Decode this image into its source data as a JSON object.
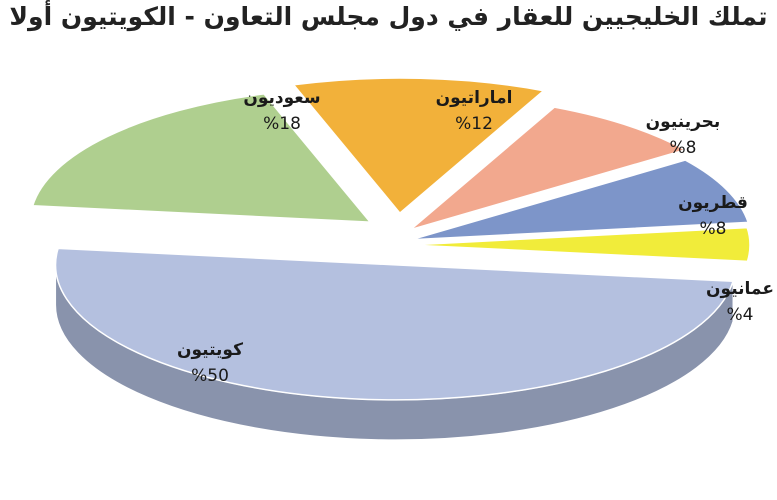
{
  "chart_data": {
    "type": "pie",
    "title": "تملك الخليجيين للعقار في دول مجلس التعاون - الكويتيون أولا",
    "slices": [
      {
        "label": "كويتيون",
        "value": 50,
        "value_label": "%50",
        "color": "#b4c0df",
        "side": "#8993ac"
      },
      {
        "label": "سعوديون",
        "value": 18,
        "value_label": "%18",
        "color": "#afcf8f",
        "side": "#7f9b63"
      },
      {
        "label": "اماراتيون",
        "value": 12,
        "value_label": "%12",
        "color": "#f2b13a",
        "side": "#c08b22"
      },
      {
        "label": "بحرينيون",
        "value": 8,
        "value_label": "%8",
        "color": "#f2a88e",
        "side": "#c27f69"
      },
      {
        "label": "قطريون",
        "value": 8,
        "value_label": "%8",
        "color": "#7d95c9",
        "side": "#5a6f9b"
      },
      {
        "label": "عمانيون",
        "value": 4,
        "value_label": "%4",
        "color": "#f1ec3a",
        "side": "#b8b21c"
      }
    ]
  }
}
